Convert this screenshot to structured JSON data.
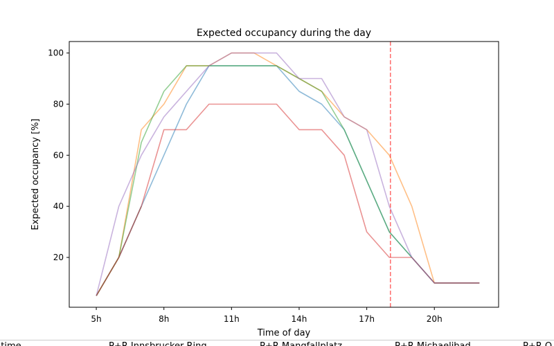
{
  "chart_data": {
    "type": "line",
    "title": "Expected occupancy during the day",
    "xlabel": "Time of day",
    "ylabel": "Expected occupancy [%]",
    "xlim": [
      3.8,
      22.85
    ],
    "ylim": [
      0.5,
      104.5
    ],
    "x_ticks": [
      {
        "value": 5,
        "label": "5h"
      },
      {
        "value": 8,
        "label": "8h"
      },
      {
        "value": 11,
        "label": "11h"
      },
      {
        "value": 14,
        "label": "14h"
      },
      {
        "value": 17,
        "label": "17h"
      },
      {
        "value": 20,
        "label": "20h"
      }
    ],
    "y_ticks": [
      20,
      40,
      60,
      80,
      100
    ],
    "x": [
      5,
      6,
      7,
      8,
      9,
      10,
      11,
      12,
      13,
      14,
      15,
      16,
      17,
      18,
      19,
      20,
      21,
      22
    ],
    "series": [
      {
        "color": "#1f77b4",
        "values": [
          5,
          20,
          40,
          60,
          80,
          95,
          95,
          95,
          95,
          85,
          80,
          70,
          50,
          30,
          20,
          10,
          10,
          10
        ]
      },
      {
        "color": "#ff7f0e",
        "values": [
          5,
          20,
          70,
          80,
          95,
          95,
          100,
          100,
          95,
          90,
          85,
          75,
          70,
          60,
          40,
          10,
          10,
          10
        ]
      },
      {
        "color": "#2ca02c",
        "values": [
          5,
          20,
          65,
          85,
          95,
          95,
          95,
          95,
          95,
          90,
          85,
          70,
          50,
          30,
          20,
          10,
          10,
          10
        ]
      },
      {
        "color": "#d62728",
        "values": [
          5,
          20,
          40,
          70,
          70,
          80,
          80,
          80,
          80,
          70,
          70,
          60,
          30,
          20,
          20,
          10,
          10,
          10
        ]
      },
      {
        "color": "#9467bd",
        "values": [
          5,
          40,
          60,
          75,
          85,
          95,
          100,
          100,
          100,
          90,
          90,
          75,
          70,
          40,
          20,
          10,
          10,
          10
        ]
      },
      {
        "color": "#8c564b",
        "values": [
          5,
          20,
          40,
          null,
          null,
          null,
          null,
          null,
          null,
          null,
          null,
          null,
          null,
          null,
          null,
          null,
          null,
          null
        ]
      }
    ],
    "current_time_marker": {
      "x": 18.05,
      "color": "#ff0000",
      "style": "dashed"
    },
    "legend": {
      "placement": "bottom",
      "entries": [
        "t time",
        "P+R Innsbrucker Ring",
        "P+R Mangfallplatz",
        "P+R Michaelibad",
        "P+R O"
      ]
    }
  }
}
